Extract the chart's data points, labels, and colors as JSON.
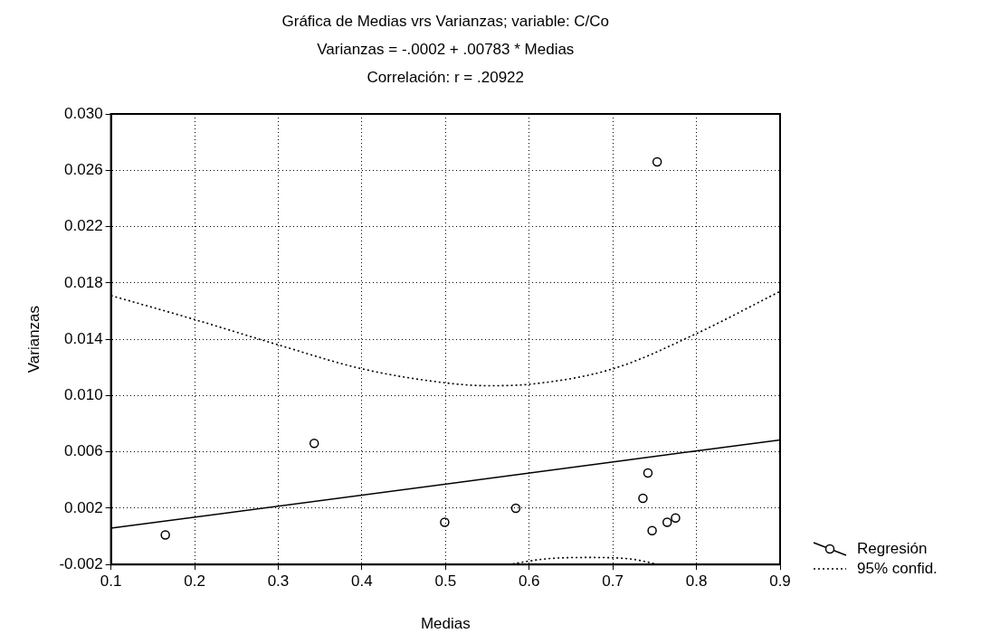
{
  "chart_data": {
    "type": "scatter",
    "title": "Gráfica de Medias vrs Varianzas; variable: C/Co",
    "subtitle": "Varianzas = -.0002 + .00783 * Medias",
    "annotations": [
      "Correlación: r = .20922"
    ],
    "xlabel": "Medias",
    "ylabel": "Varianzas",
    "xlim": [
      0.1,
      0.9
    ],
    "xticks": [
      {
        "value": 0.1,
        "label": "0.1"
      },
      {
        "value": 0.2,
        "label": "0.2"
      },
      {
        "value": 0.3,
        "label": "0.3"
      },
      {
        "value": 0.4,
        "label": "0.4"
      },
      {
        "value": 0.5,
        "label": "0.5"
      },
      {
        "value": 0.6,
        "label": "0.6"
      },
      {
        "value": 0.7,
        "label": "0.7"
      },
      {
        "value": 0.8,
        "label": "0.8"
      },
      {
        "value": 0.9,
        "label": "0.9"
      }
    ],
    "ylim": [
      -0.002,
      0.03
    ],
    "yticks": [
      {
        "value": -0.002,
        "label": "-0.002"
      },
      {
        "value": 0.002,
        "label": "0.002"
      },
      {
        "value": 0.006,
        "label": "0.006"
      },
      {
        "value": 0.01,
        "label": "0.010"
      },
      {
        "value": 0.014,
        "label": "0.014"
      },
      {
        "value": 0.018,
        "label": "0.018"
      },
      {
        "value": 0.022,
        "label": "0.022"
      },
      {
        "value": 0.026,
        "label": "0.026"
      },
      {
        "value": 0.03,
        "label": "0.030"
      }
    ],
    "grid": true,
    "legend": "bottom right",
    "series": [
      {
        "marker": "circle",
        "color": "#000000",
        "x": [
          0.165,
          0.343,
          0.499,
          0.584,
          0.736,
          0.742,
          0.747,
          0.765,
          0.775,
          0.753
        ],
        "values": [
          0.0001,
          0.0066,
          0.001,
          0.002,
          0.0027,
          0.0045,
          0.0004,
          0.001,
          0.0013,
          0.0266
        ]
      },
      {
        "type": "line",
        "name": "Regresión",
        "color": "#000000",
        "line_style": "solid",
        "marker": "none",
        "x": [
          0.1,
          0.9
        ],
        "values": [
          0.00058,
          0.00685
        ]
      },
      {
        "type": "line",
        "name": "95% confid.",
        "color": "#000000",
        "line_style": "dotted",
        "marker": "none",
        "x": [
          0.1,
          0.2,
          0.3,
          0.4,
          0.5,
          0.55,
          0.6,
          0.7,
          0.8,
          0.9
        ],
        "values": [
          0.0171,
          0.0154,
          0.0136,
          0.0119,
          0.0109,
          0.0107,
          0.0108,
          0.0119,
          0.0144,
          0.0174
        ]
      },
      {
        "type": "line",
        "color": "#000000",
        "line_style": "dotted",
        "marker": "none",
        "x": [
          0.575,
          0.62,
          0.67,
          0.72,
          0.755
        ],
        "values": [
          -0.002,
          -0.0016,
          -0.0015,
          -0.0016,
          -0.002
        ]
      }
    ]
  }
}
